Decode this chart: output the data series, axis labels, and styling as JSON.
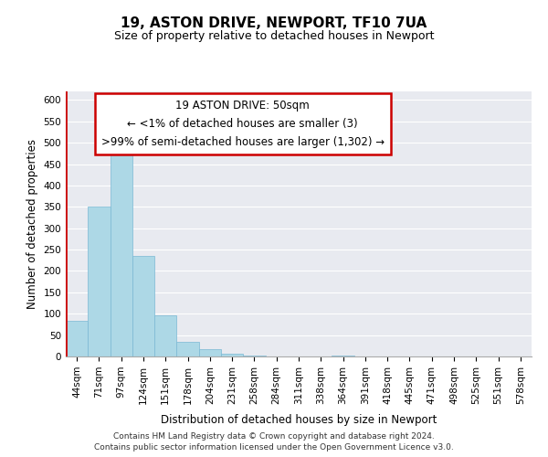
{
  "title": "19, ASTON DRIVE, NEWPORT, TF10 7UA",
  "subtitle": "Size of property relative to detached houses in Newport",
  "xlabel": "Distribution of detached houses by size in Newport",
  "ylabel": "Number of detached properties",
  "categories": [
    "44sqm",
    "71sqm",
    "97sqm",
    "124sqm",
    "151sqm",
    "178sqm",
    "204sqm",
    "231sqm",
    "258sqm",
    "284sqm",
    "311sqm",
    "338sqm",
    "364sqm",
    "391sqm",
    "418sqm",
    "445sqm",
    "471sqm",
    "498sqm",
    "525sqm",
    "551sqm",
    "578sqm"
  ],
  "values": [
    84,
    350,
    478,
    236,
    97,
    34,
    18,
    7,
    3,
    0,
    0,
    0,
    2,
    0,
    0,
    1,
    0,
    0,
    0,
    0,
    1
  ],
  "bar_color": "#add8e6",
  "bar_edge_color": "#7ab8d4",
  "highlight_color": "#cc0000",
  "ylim": [
    0,
    620
  ],
  "yticks": [
    0,
    50,
    100,
    150,
    200,
    250,
    300,
    350,
    400,
    450,
    500,
    550,
    600
  ],
  "annotation_title": "19 ASTON DRIVE: 50sqm",
  "annotation_line1": "← <1% of detached houses are smaller (3)",
  "annotation_line2": ">99% of semi-detached houses are larger (1,302) →",
  "annotation_box_color": "#ffffff",
  "annotation_box_edge": "#cc0000",
  "footer_line1": "Contains HM Land Registry data © Crown copyright and database right 2024.",
  "footer_line2": "Contains public sector information licensed under the Open Government Licence v3.0.",
  "bg_color": "#e8eaf0"
}
